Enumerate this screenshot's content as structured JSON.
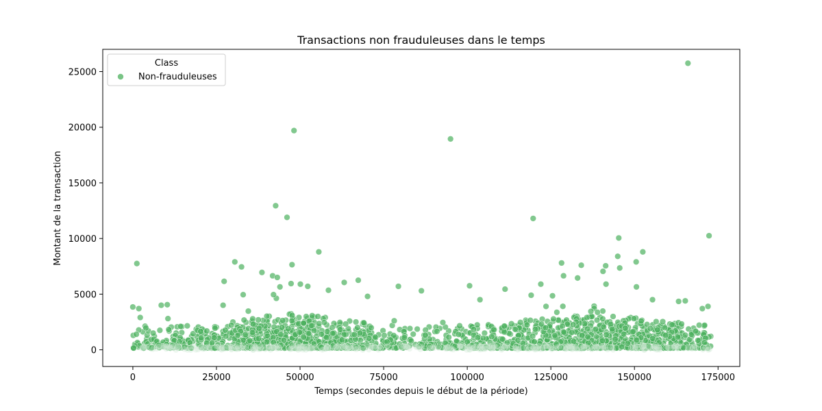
{
  "chart_data": {
    "type": "scatter",
    "title": "Transactions non frauduleuses dans le temps",
    "xlabel": "Temps (secondes depuis le début de la période)",
    "ylabel": "Montant de la transaction",
    "xlim": [
      -9000,
      181500
    ],
    "ylim": [
      -1500,
      27000
    ],
    "xticks": [
      0,
      25000,
      50000,
      75000,
      100000,
      125000,
      150000,
      175000
    ],
    "yticks": [
      0,
      5000,
      10000,
      15000,
      20000,
      25000
    ],
    "grid": false,
    "legend": {
      "title": "Class",
      "placement": "top-left",
      "entries": [
        "Non-frauduleuses"
      ]
    },
    "series": [
      {
        "name": "Non-frauduleuses",
        "color": "#4cb05e",
        "outliers": [
          [
            0,
            3850
          ],
          [
            1200,
            7750
          ],
          [
            1800,
            3700
          ],
          [
            2200,
            2900
          ],
          [
            8500,
            4000
          ],
          [
            10300,
            4050
          ],
          [
            10500,
            2800
          ],
          [
            14300,
            2100
          ],
          [
            27000,
            4000
          ],
          [
            27300,
            6150
          ],
          [
            30500,
            7900
          ],
          [
            32500,
            7450
          ],
          [
            33000,
            4950
          ],
          [
            38600,
            6950
          ],
          [
            41800,
            6650
          ],
          [
            42700,
            12950
          ],
          [
            43200,
            6500
          ],
          [
            44000,
            5650
          ],
          [
            46100,
            11900
          ],
          [
            47300,
            5950
          ],
          [
            47600,
            7650
          ],
          [
            48200,
            19700
          ],
          [
            50100,
            5900
          ],
          [
            52300,
            5700
          ],
          [
            55600,
            8800
          ],
          [
            58500,
            5350
          ],
          [
            63200,
            6050
          ],
          [
            67400,
            6250
          ],
          [
            70200,
            4800
          ],
          [
            79400,
            5700
          ],
          [
            86300,
            5300
          ],
          [
            92700,
            2450
          ],
          [
            95000,
            18950
          ],
          [
            100700,
            5750
          ],
          [
            103800,
            4500
          ],
          [
            111300,
            5450
          ],
          [
            119100,
            4900
          ],
          [
            119700,
            11800
          ],
          [
            122000,
            5900
          ],
          [
            125500,
            4850
          ],
          [
            128200,
            7800
          ],
          [
            128800,
            6650
          ],
          [
            133000,
            6450
          ],
          [
            134100,
            7600
          ],
          [
            140600,
            7050
          ],
          [
            141400,
            7550
          ],
          [
            141500,
            5900
          ],
          [
            145000,
            8400
          ],
          [
            145300,
            10050
          ],
          [
            145600,
            7350
          ],
          [
            150500,
            7900
          ],
          [
            150600,
            5650
          ],
          [
            152500,
            8800
          ],
          [
            155400,
            4500
          ],
          [
            163200,
            4350
          ],
          [
            165200,
            4400
          ],
          [
            166000,
            25750
          ],
          [
            170300,
            3700
          ],
          [
            172000,
            3900
          ],
          [
            172300,
            10250
          ]
        ]
      }
    ]
  }
}
